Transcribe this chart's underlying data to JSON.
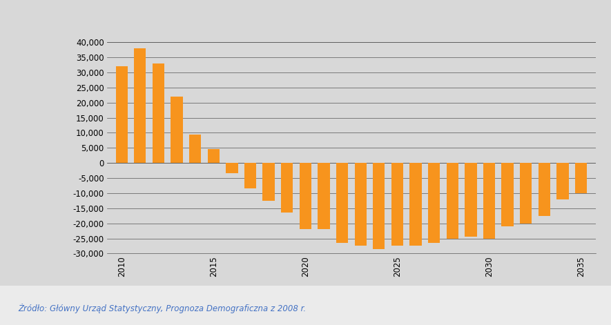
{
  "years": [
    2010,
    2011,
    2012,
    2013,
    2014,
    2015,
    2016,
    2017,
    2018,
    2019,
    2020,
    2021,
    2022,
    2023,
    2024,
    2025,
    2026,
    2027,
    2028,
    2029,
    2030,
    2031,
    2032,
    2033,
    2034,
    2035
  ],
  "values": [
    32000,
    38000,
    33000,
    22000,
    9500,
    4500,
    -3500,
    -8500,
    -12500,
    -16500,
    -22000,
    -22000,
    -26500,
    -27500,
    -28500,
    -27500,
    -27500,
    -26500,
    -25000,
    -24500,
    -25000,
    -21000,
    -20000,
    -17500,
    -12000,
    -10000
  ],
  "bar_color": "#F7941D",
  "fig_background": "#D8D8D8",
  "plot_background": "#D8D8D8",
  "source_background": "#F0F0F0",
  "ylim": [
    -30000,
    40000
  ],
  "yticks": [
    -30000,
    -25000,
    -20000,
    -15000,
    -10000,
    -5000,
    0,
    5000,
    10000,
    15000,
    20000,
    25000,
    30000,
    35000,
    40000
  ],
  "xtick_years": [
    2010,
    2015,
    2020,
    2025,
    2030,
    2035
  ],
  "source_text": "Żródło: Główny Urząd Statystyczny, Prognoza Demograficzna z 2008 r.",
  "bar_width": 0.65,
  "grid_color": "#555555",
  "grid_linewidth": 0.5,
  "source_color": "#4472C4",
  "tick_fontsize": 8.5,
  "source_fontsize": 8.5
}
